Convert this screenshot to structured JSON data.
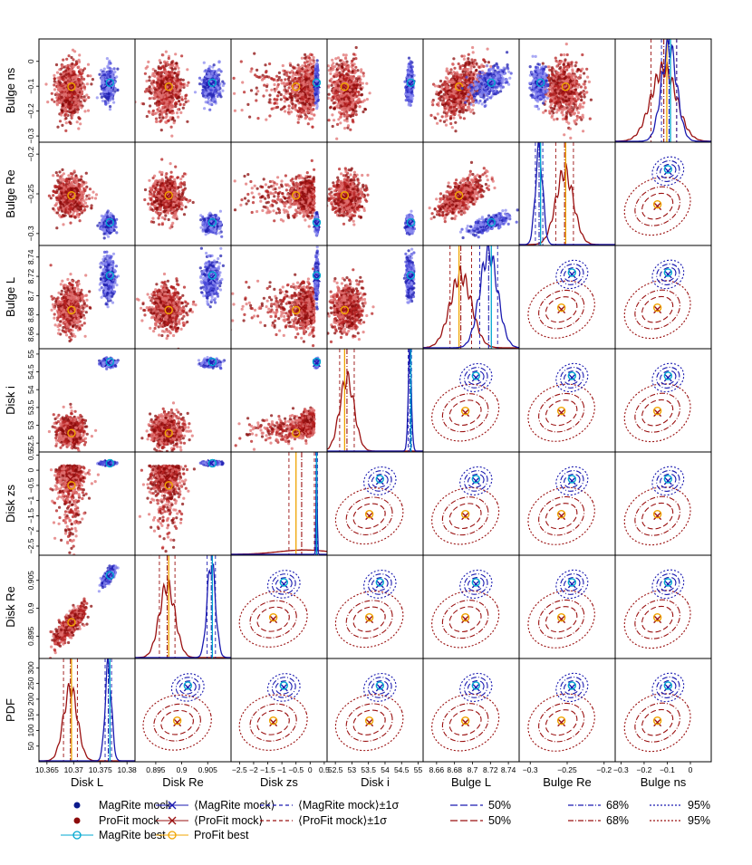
{
  "chart_data": {
    "type": "scatter",
    "title": "",
    "params": [
      {
        "key": "disk_l",
        "label": "Disk L",
        "range": [
          10.3635,
          10.3815
        ],
        "ticks": [
          10.365,
          10.37,
          10.375,
          10.38
        ],
        "ticklabels": [
          "10.365",
          "10.37",
          "10.375",
          "10.38"
        ],
        "profit": {
          "center": 10.3694,
          "spread": 0.0013,
          "best": 10.3696
        },
        "magrite": {
          "center": 10.3765,
          "spread": 0.0006,
          "best": 10.3768
        }
      },
      {
        "key": "disk_re",
        "label": "Disk Re",
        "range": [
          0.891,
          0.9095
        ],
        "ticks": [
          0.895,
          0.9,
          0.905
        ],
        "ticklabels": [
          "0.895",
          "0.9",
          "0.905"
        ],
        "profit": {
          "center": 0.8972,
          "spread": 0.0015,
          "best": 0.8975
        },
        "magrite": {
          "center": 0.9057,
          "spread": 0.0008,
          "best": 0.9059
        }
      },
      {
        "key": "disk_zs",
        "label": "Disk zs",
        "range": [
          -2.8,
          0.6
        ],
        "ticks": [
          -2.5,
          -2,
          -1.5,
          -1,
          -0.5,
          0,
          0.5
        ],
        "ticklabels": [
          "−2.5",
          "−2",
          "−1.5",
          "−1",
          "−0.5",
          "0",
          "0.5"
        ],
        "profit": {
          "center": -0.3,
          "spread": 0.45,
          "best": -0.5
        },
        "magrite": {
          "center": 0.23,
          "spread": 0.03,
          "best": 0.23
        }
      },
      {
        "key": "disk_i",
        "label": "Disk i",
        "range": [
          52.25,
          55.15
        ],
        "ticks": [
          52.5,
          53,
          53.5,
          54,
          54.5,
          55
        ],
        "ticklabels": [
          "52.5",
          "53",
          "53.5",
          "54",
          "54.5",
          "55"
        ],
        "profit": {
          "center": 52.85,
          "spread": 0.22,
          "best": 52.78
        },
        "magrite": {
          "center": 54.75,
          "spread": 0.05,
          "best": 54.78
        }
      },
      {
        "key": "bulge_l",
        "label": "Bulge L",
        "range": [
          8.645,
          8.752
        ],
        "ticks": [
          8.66,
          8.68,
          8.7,
          8.72,
          8.74
        ],
        "ticklabels": [
          "8.66",
          "8.68",
          "8.7",
          "8.72",
          "8.74"
        ],
        "profit": {
          "center": 8.687,
          "spread": 0.012,
          "best": 8.685
        },
        "magrite": {
          "center": 8.718,
          "spread": 0.01,
          "best": 8.721
        }
      },
      {
        "key": "bulge_re",
        "label": "Bulge Re",
        "range": [
          -0.315,
          -0.185
        ],
        "ticks": [
          -0.3,
          -0.25,
          -0.2
        ],
        "ticklabels": [
          "−0.3",
          "−0.25",
          "−0.2"
        ],
        "profit": {
          "center": -0.2535,
          "spread": 0.012,
          "best": -0.252
        },
        "magrite": {
          "center": -0.288,
          "spread": 0.005,
          "best": -0.286
        }
      },
      {
        "key": "bulge_ns",
        "label": "Bulge ns",
        "range": [
          -0.325,
          0.09
        ],
        "ticks": [
          -0.3,
          -0.2,
          -0.1,
          0
        ],
        "ticklabels": [
          "−0.3",
          "−0.2",
          "−0.1",
          "0"
        ],
        "profit": {
          "center": -0.115,
          "spread": 0.055,
          "best": -0.102
        },
        "magrite": {
          "center": -0.092,
          "spread": 0.033,
          "best": -0.086
        }
      }
    ],
    "pdf_ylabel": "PDF",
    "pdf_range": [
      0,
      330
    ],
    "pdf_ticks": [
      50,
      100,
      150,
      200,
      250,
      300
    ],
    "pdf_ticklabels": [
      "50",
      "100",
      "150",
      "200",
      "250",
      "300"
    ],
    "correlations": {
      "disk_l|disk_re": 0.75,
      "bulge_l|bulge_re": 0.65,
      "bulge_l|bulge_ns": 0.45,
      "disk_zs|disk_i": 0.35
    },
    "series": [
      {
        "name": "MagRite mock",
        "color": "#1a1ab0",
        "marker": "dot"
      },
      {
        "name": "ProFit mock",
        "color": "#9a1010",
        "marker": "dot"
      },
      {
        "name": "MagRite best",
        "color": "#00a8d0",
        "marker": "circle"
      },
      {
        "name": "ProFit best",
        "color": "#f0a400",
        "marker": "circle"
      }
    ],
    "legend": [
      {
        "label": "MagRite mock",
        "symbol": "dot",
        "color": "#0b1a8c"
      },
      {
        "label": "⟨MagRite mock⟩",
        "symbol": "cross-line",
        "color": "#1a1ab0"
      },
      {
        "label": "⟨MagRite mock⟩±1σ",
        "symbol": "dash",
        "color": "#1a1ab0"
      },
      {
        "label": "50%",
        "symbol": "longdash",
        "color": "#1a1ab0"
      },
      {
        "label": "68%",
        "symbol": "dashdot",
        "color": "#1a1ab0"
      },
      {
        "label": "95%",
        "symbol": "dotted",
        "color": "#1a1ab0"
      },
      {
        "label": "ProFit mock",
        "symbol": "dot",
        "color": "#8c0b0b"
      },
      {
        "label": "⟨ProFit mock⟩",
        "symbol": "cross-line",
        "color": "#9a1010"
      },
      {
        "label": "⟨ProFit mock⟩±1σ",
        "symbol": "dash",
        "color": "#9a1010"
      },
      {
        "label": "50%",
        "symbol": "longdash",
        "color": "#9a1010"
      },
      {
        "label": "68%",
        "symbol": "dashdot",
        "color": "#9a1010"
      },
      {
        "label": "95%",
        "symbol": "dotted",
        "color": "#9a1010"
      },
      {
        "label": "MagRite best",
        "symbol": "circle-line",
        "color": "#00a8d0"
      },
      {
        "label": "ProFit best",
        "symbol": "circle-line",
        "color": "#f0a400"
      }
    ],
    "colors": {
      "magrite": "#1a1ab0",
      "profit": "#9a1010",
      "magrite_best": "#00a8d0",
      "profit_best": "#f0a400"
    }
  }
}
